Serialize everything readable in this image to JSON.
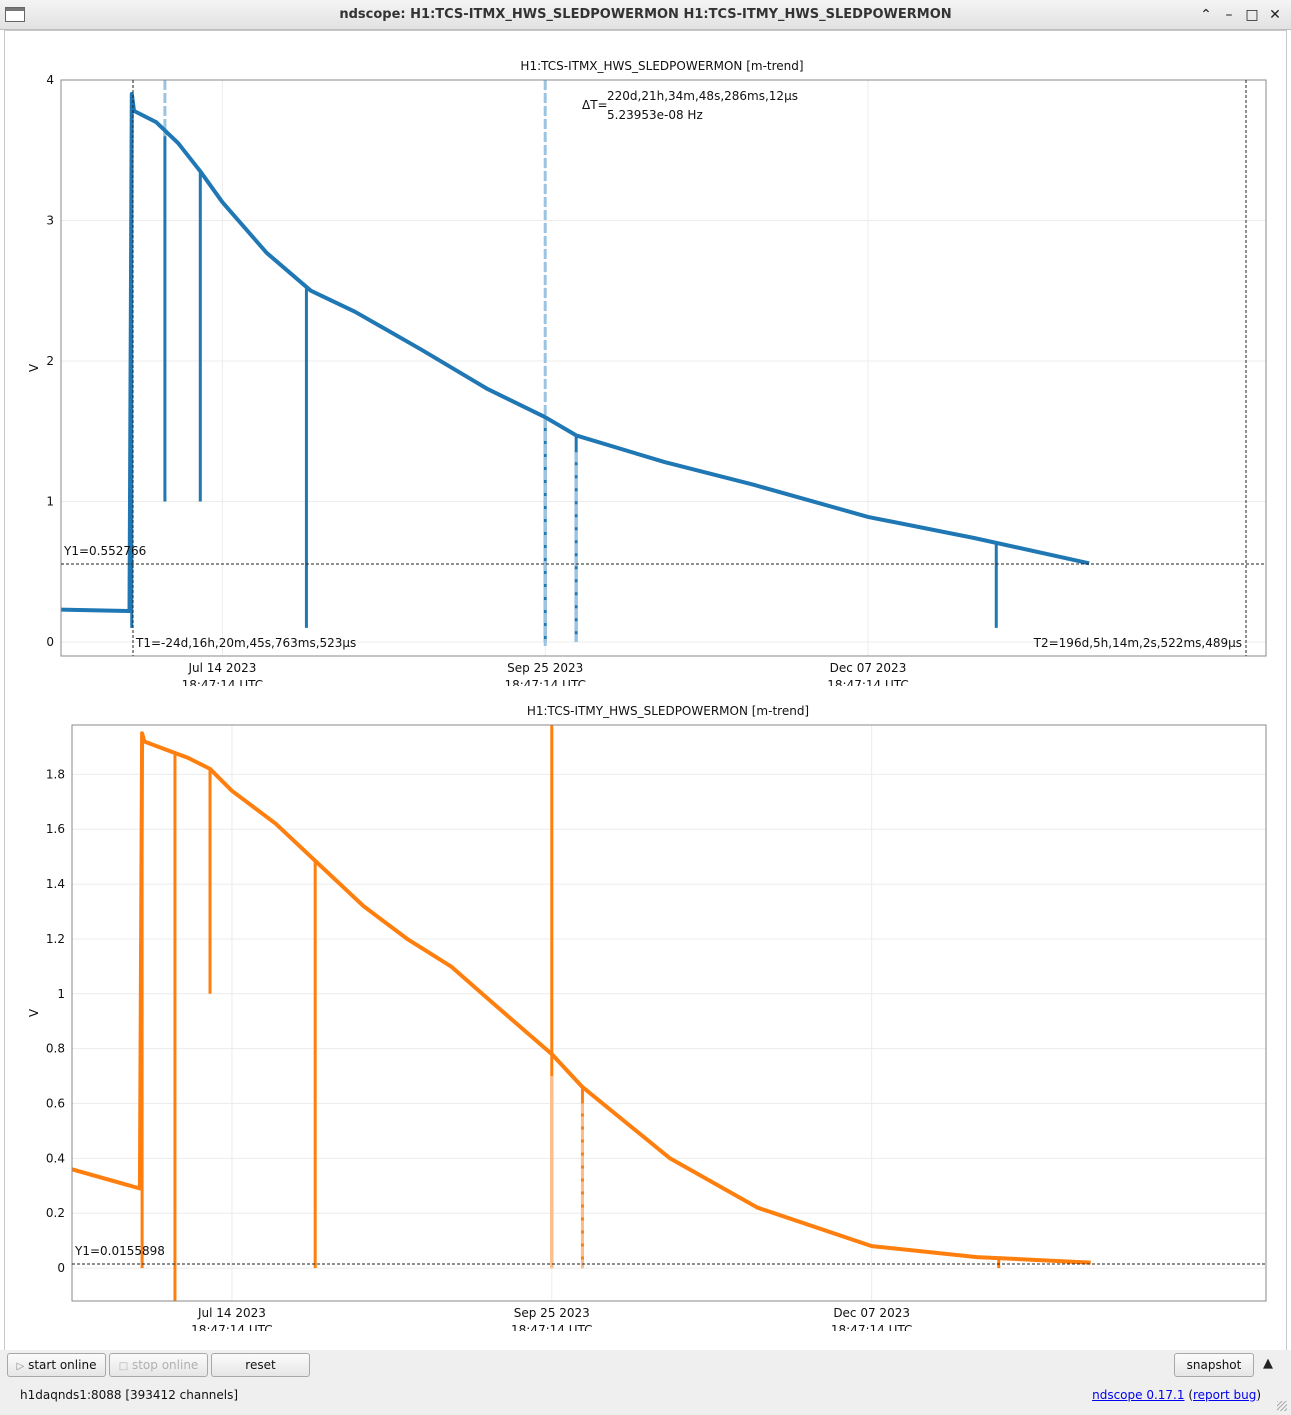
{
  "window": {
    "title": "ndscope: H1:TCS-ITMX_HWS_SLEDPOWERMON H1:TCS-ITMY_HWS_SLEDPOWERMON",
    "buttons": [
      "minimize-up",
      "minimize",
      "maximize",
      "close"
    ]
  },
  "colors": {
    "series1": "#1f77b4",
    "series1_light": "#9cc3e0",
    "series2": "#ff7f0e",
    "series2_light": "#fbbf8f"
  },
  "plots": [
    {
      "title": "H1:TCS-ITMX_HWS_SLEDPOWERMON [m-trend]",
      "ylabel": "V",
      "yticks": [
        "0",
        "1",
        "2",
        "3",
        "4"
      ],
      "xticks": [
        {
          "date": "Jul 14 2023",
          "time": "18:47:14 UTC"
        },
        {
          "date": "Sep 25 2023",
          "time": "18:47:14 UTC"
        },
        {
          "date": "Dec 07 2023",
          "time": "18:47:14 UTC"
        }
      ],
      "cursor_y": "Y1=0.552766",
      "cursor_t1": "T1=-24d,16h,20m,45s,763ms,523μs",
      "cursor_t2": "T2=196d,5h,14m,2s,522ms,489μs",
      "delta_label": "ΔT=",
      "delta_t": "220d,21h,34m,48s,286ms,12μs",
      "delta_f": "5.23953e-08 Hz"
    },
    {
      "title": "H1:TCS-ITMY_HWS_SLEDPOWERMON [m-trend]",
      "ylabel": "V",
      "yticks": [
        "0",
        "0.2",
        "0.4",
        "0.6",
        "0.8",
        "1",
        "1.2",
        "1.4",
        "1.6",
        "1.8"
      ],
      "xticks": [
        {
          "date": "Jul 14 2023",
          "time": "18:47:14 UTC"
        },
        {
          "date": "Sep 25 2023",
          "time": "18:47:14 UTC"
        },
        {
          "date": "Dec 07 2023",
          "time": "18:47:14 UTC"
        }
      ],
      "cursor_y": "Y1=0.0155898"
    }
  ],
  "chart_data": [
    {
      "type": "line",
      "title": "H1:TCS-ITMX_HWS_SLEDPOWERMON [m-trend]",
      "ylabel": "V",
      "ylim": [
        -0.1,
        4.0
      ],
      "x_units": "days relative to Jul 14 2023 18:47:14 UTC",
      "xlim": [
        -36.5,
        236.0
      ],
      "series": [
        {
          "name": "H1:TCS-ITMX_HWS_SLEDPOWERMON",
          "x": [
            -36.5,
            -21,
            -20.5,
            -20,
            -15,
            -10,
            -5,
            0,
            10,
            20,
            30,
            45,
            60,
            73,
            80,
            100,
            120,
            146,
            170,
            196
          ],
          "y": [
            0.23,
            0.22,
            3.9,
            3.78,
            3.7,
            3.55,
            3.35,
            3.13,
            2.77,
            2.5,
            2.35,
            2.08,
            1.8,
            1.6,
            1.47,
            1.28,
            1.12,
            0.89,
            0.74,
            0.56
          ]
        }
      ],
      "dips": [
        {
          "x": -20.5,
          "min": 0.1
        },
        {
          "x": -13,
          "min": 1.0
        },
        {
          "x": -5,
          "min": 1.0
        },
        {
          "x": 19,
          "min": 0.1
        },
        {
          "x": 73,
          "min": 0.0
        },
        {
          "x": 80,
          "min": 0.0
        },
        {
          "x": 175,
          "min": 0.1
        }
      ]
    },
    {
      "type": "line",
      "title": "H1:TCS-ITMY_HWS_SLEDPOWERMON [m-trend]",
      "ylabel": "V",
      "ylim": [
        -0.12,
        1.98
      ],
      "x_units": "days relative to Jul 14 2023 18:47:14 UTC",
      "xlim": [
        -36.5,
        236.0
      ],
      "series": [
        {
          "name": "H1:TCS-ITMY_HWS_SLEDPOWERMON",
          "x": [
            -36.5,
            -21,
            -20.5,
            -20,
            -15,
            -10,
            -5,
            0,
            10,
            20,
            30,
            40,
            50,
            60,
            73,
            80,
            100,
            120,
            146,
            170,
            196
          ],
          "y": [
            0.36,
            0.29,
            1.95,
            1.92,
            1.89,
            1.86,
            1.82,
            1.74,
            1.62,
            1.47,
            1.32,
            1.2,
            1.1,
            0.96,
            0.78,
            0.66,
            0.4,
            0.22,
            0.08,
            0.04,
            0.02
          ]
        }
      ],
      "dips": [
        {
          "x": -20.5,
          "min": 0.0
        },
        {
          "x": -13,
          "min": -0.12
        },
        {
          "x": -5,
          "min": 1.0
        },
        {
          "x": 19,
          "min": 0.0
        },
        {
          "x": 73,
          "min": 0.0
        },
        {
          "x": 80,
          "min": 0.0
        },
        {
          "x": 175,
          "min": 0.0
        }
      ]
    }
  ],
  "toolbar": {
    "start_online": "start online",
    "stop_online": "stop online",
    "reset": "reset",
    "snapshot": "snapshot"
  },
  "status": {
    "server": "h1daqnds1:8088  [393412 channels]",
    "version_link": "ndscope 0.17.1",
    "report_prefix": " (",
    "report_link": "report bug",
    "report_suffix": ")"
  }
}
